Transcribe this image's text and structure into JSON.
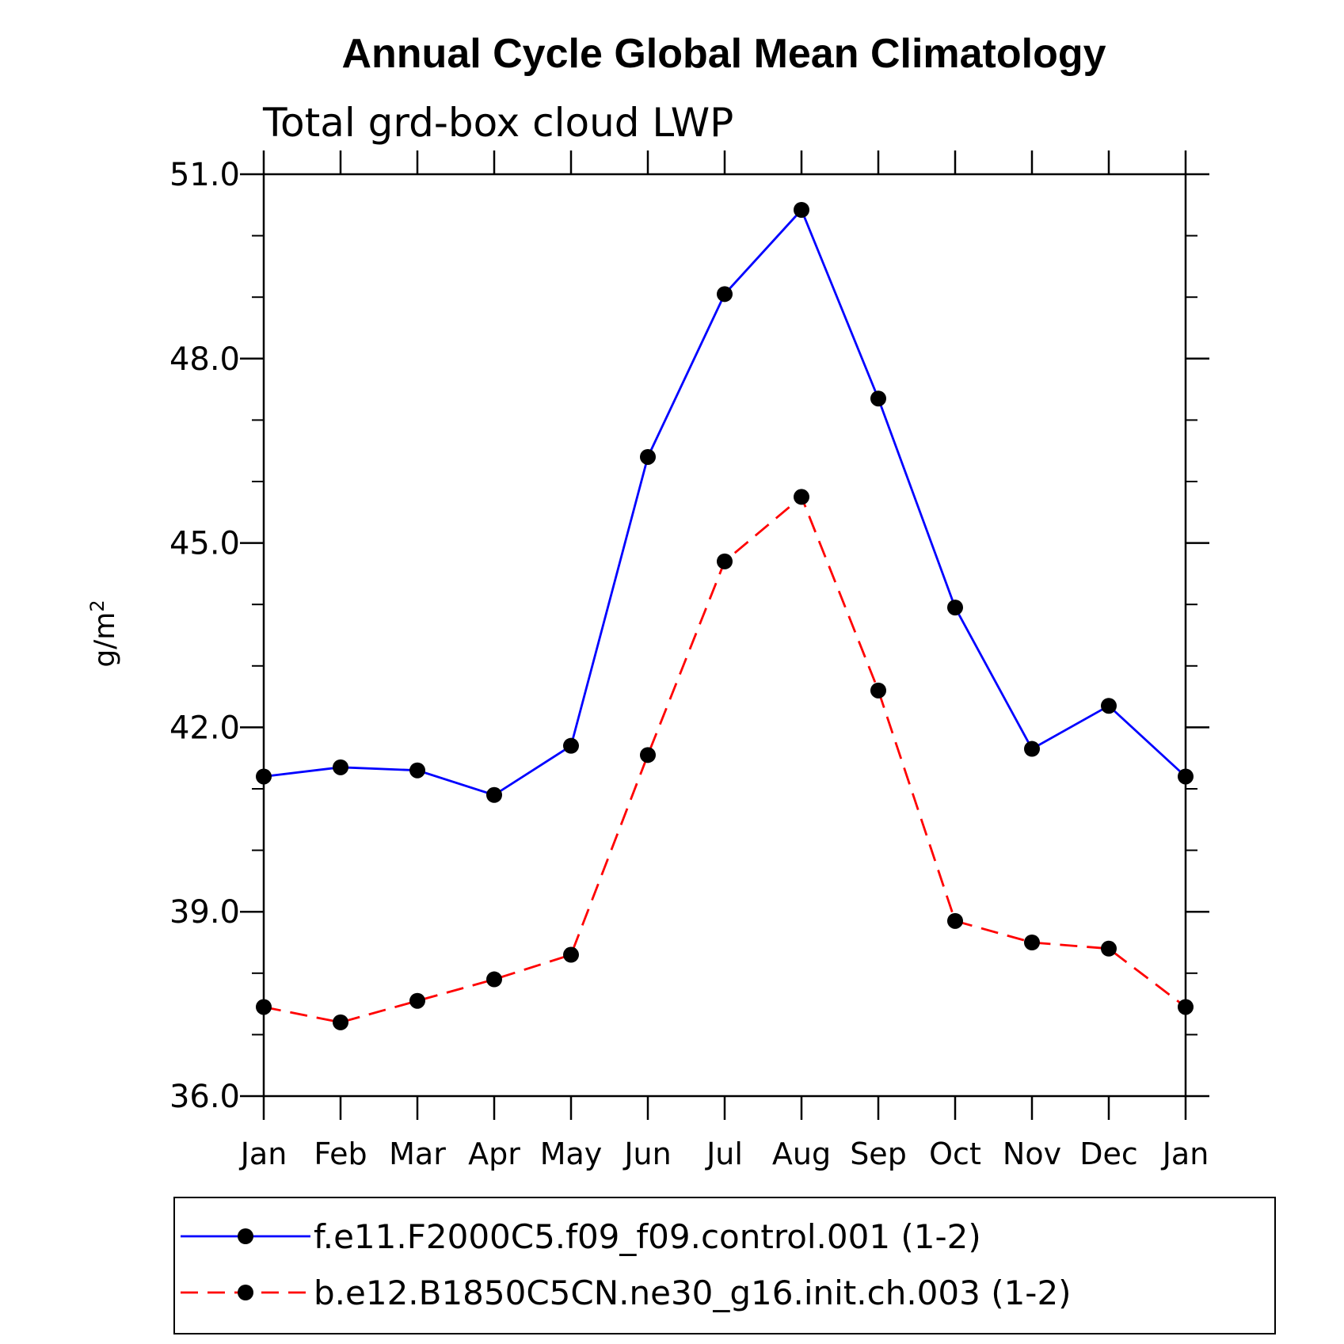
{
  "chart_data": {
    "type": "line",
    "title": "Annual Cycle Global Mean Climatology",
    "subtitle": "Total grd-box cloud LWP",
    "xlabel": "",
    "ylabel": "g/m",
    "ylabel_superscript": "2",
    "categories": [
      "Jan",
      "Feb",
      "Mar",
      "Apr",
      "May",
      "Jun",
      "Jul",
      "Aug",
      "Sep",
      "Oct",
      "Nov",
      "Dec",
      "Jan"
    ],
    "ylim": [
      36.0,
      51.0
    ],
    "yticks": [
      36.0,
      39.0,
      42.0,
      45.0,
      48.0,
      51.0
    ],
    "ytick_labels": [
      "36.0",
      "39.0",
      "42.0",
      "45.0",
      "48.0",
      "51.0"
    ],
    "yminor_step": 1.0,
    "grid": false,
    "legend_position": "bottom",
    "series": [
      {
        "name": "f.e11.F2000C5.f09_f09.control.001 (1-2)",
        "color": "#0000ff",
        "line_style": "solid",
        "marker": "filled-circle",
        "values": [
          41.2,
          41.35,
          41.3,
          40.9,
          41.7,
          46.4,
          49.05,
          50.42,
          47.35,
          43.95,
          41.65,
          42.35,
          41.2
        ]
      },
      {
        "name": "b.e12.B1850C5CN.ne30_g16.init.ch.003 (1-2)",
        "color": "#ff0000",
        "line_style": "dashed",
        "marker": "filled-circle",
        "values": [
          37.45,
          37.2,
          37.55,
          37.9,
          38.3,
          41.55,
          44.7,
          45.75,
          42.6,
          38.85,
          38.5,
          38.4,
          37.45
        ]
      }
    ]
  }
}
